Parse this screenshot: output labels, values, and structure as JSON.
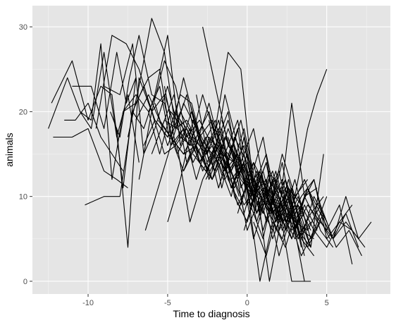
{
  "chart_data": {
    "type": "line",
    "title": "",
    "xlabel": "Time to diagnosis",
    "ylabel": "animals",
    "xlim": [
      -13.5,
      9
    ],
    "ylim": [
      -1.5,
      32.5
    ],
    "x_ticks": [
      -10,
      -5,
      0,
      5
    ],
    "y_ticks": [
      0,
      10,
      20,
      30
    ],
    "x_tick_labels": [
      "-10",
      "-5",
      "0",
      "5"
    ],
    "y_tick_labels": [
      "0",
      "10",
      "20",
      "30"
    ],
    "grid": true,
    "legend": "none",
    "colors": {
      "panel": "#e5e5e5",
      "grid_major": "#ffffff",
      "line": "#000000",
      "tick_label": "#4d4d4d"
    },
    "series": [
      {
        "x": [
          -12.5,
          -11.3,
          -10.5,
          -9.8,
          -9,
          -8.2,
          -7.5,
          -6.8
        ],
        "y": [
          18,
          24,
          20,
          18,
          27,
          17,
          22,
          14
        ]
      },
      {
        "x": [
          -12.3,
          -11,
          -10,
          -9.2,
          -8.5,
          -7.8,
          -7
        ],
        "y": [
          21,
          26,
          19,
          23,
          22,
          11,
          24
        ]
      },
      {
        "x": [
          -12.2,
          -11,
          -10,
          -9,
          -8.2,
          -7.5
        ],
        "y": [
          17,
          17,
          18,
          13,
          12,
          11
        ]
      },
      {
        "x": [
          -11.5,
          -10.8,
          -10,
          -9.2,
          -8.5,
          -7.8
        ],
        "y": [
          19,
          19,
          21,
          17,
          15,
          13
        ]
      },
      {
        "x": [
          -11,
          -10.5,
          -9.8,
          -9,
          -8.2,
          -7.6,
          -7
        ],
        "y": [
          23,
          23,
          23,
          18,
          27,
          21,
          24
        ]
      },
      {
        "x": [
          -10.5,
          -9.8,
          -9.2,
          -8.5,
          -7.8,
          -7,
          -6.2,
          -5.5,
          -4.8,
          -4,
          -3.2
        ],
        "y": [
          20,
          19,
          28,
          12,
          20,
          22,
          20,
          15,
          20,
          18,
          15
        ]
      },
      {
        "x": [
          -10.2,
          -9,
          -8,
          -7.2,
          -6.5,
          -5.8,
          -5
        ],
        "y": [
          9,
          10,
          10,
          20,
          23,
          19,
          17
        ]
      },
      {
        "x": [
          -9.5,
          -8.5,
          -7.6,
          -6.8,
          -6,
          -5.2,
          -4.5,
          -3.8,
          -3
        ],
        "y": [
          18,
          29,
          28,
          25,
          20,
          22,
          18,
          19,
          16
        ]
      },
      {
        "x": [
          -9,
          -8,
          -7.2,
          -6.5,
          -5.8,
          -5,
          -4.2,
          -3.5
        ],
        "y": [
          23,
          22,
          28,
          15,
          18,
          23,
          17,
          16
        ]
      },
      {
        "x": [
          -8.6,
          -8,
          -7.4,
          -6.8,
          -6,
          -5.2,
          -4.6,
          -4
        ],
        "y": [
          20,
          17,
          24,
          29,
          22,
          21,
          16,
          18
        ]
      },
      {
        "x": [
          -8.2,
          -7.5,
          -6.8,
          -6,
          -5.2,
          -4.5,
          -3.8,
          -3,
          -2.2
        ],
        "y": [
          18,
          4,
          24,
          20,
          15,
          16,
          18,
          14,
          12
        ]
      },
      {
        "x": [
          -7.8,
          -7,
          -6.2,
          -5.5,
          -4.8,
          -4,
          -3.2,
          -2.4
        ],
        "y": [
          20,
          21,
          24,
          25,
          17,
          15,
          16,
          13
        ]
      },
      {
        "x": [
          -7.5,
          -6.8,
          -6,
          -5.2,
          -4.5,
          -3.8,
          -3,
          -2.2,
          -1.5
        ],
        "y": [
          17,
          23,
          31,
          27,
          18,
          22,
          14,
          16,
          12
        ]
      },
      {
        "x": [
          -7.2,
          -6.5,
          -5.8,
          -5,
          -4.2,
          -3.5,
          -2.8,
          -2,
          -1.2,
          -0.5
        ],
        "y": [
          20,
          18,
          22,
          29,
          16,
          20,
          15,
          18,
          14,
          10
        ]
      },
      {
        "x": [
          -7,
          -6.2,
          -5.5,
          -4.8,
          -4,
          -3.2,
          -2.5,
          -1.8,
          -1,
          -0.2,
          0.6
        ],
        "y": [
          19,
          22,
          19,
          17,
          24,
          18,
          15,
          19,
          12,
          14,
          9
        ]
      },
      {
        "x": [
          -6.8,
          -6,
          -5.2,
          -4.5,
          -3.8,
          -3,
          -2.2,
          -1.4,
          -0.6,
          0.2,
          1
        ],
        "y": [
          12,
          20,
          26,
          23,
          17,
          19,
          16,
          13,
          15,
          11,
          8
        ]
      },
      {
        "x": [
          -6.5,
          -5.8,
          -5,
          -4.2,
          -3.5,
          -2.8,
          -2,
          -1.2,
          -0.4,
          0.4,
          1.2,
          2
        ],
        "y": [
          16,
          19,
          17,
          22,
          21,
          16,
          13,
          18,
          14,
          10,
          12,
          7
        ]
      },
      {
        "x": [
          -6.4,
          -5.6,
          -4.8,
          -4,
          -3.2,
          -2.4,
          -1.6,
          -0.8,
          0,
          0.8,
          1.6,
          2.4
        ],
        "y": [
          6,
          11,
          16,
          18,
          12,
          17,
          15,
          14,
          9,
          12,
          8,
          10
        ]
      },
      {
        "x": [
          -6.2,
          -5.5,
          -4.8,
          -4,
          -3.2,
          -2.5,
          -1.8,
          -1,
          -0.2,
          0.6,
          1.4,
          2.2,
          3
        ],
        "y": [
          20,
          23,
          16,
          21,
          18,
          13,
          17,
          11,
          15,
          8,
          11,
          7,
          9
        ]
      },
      {
        "x": [
          -6,
          -5.2,
          -4.4,
          -3.6,
          -2.8,
          -2,
          -1.2,
          -0.4,
          0.4,
          1.2,
          2,
          2.8,
          3.6
        ],
        "y": [
          15,
          19,
          18,
          16,
          22,
          17,
          14,
          19,
          12,
          10,
          13,
          6,
          8
        ]
      },
      {
        "x": [
          -5.8,
          -5,
          -4.2,
          -3.4,
          -2.6,
          -1.8,
          -1,
          -0.2,
          0.6,
          1.4,
          2.2,
          3,
          3.8
        ],
        "y": [
          21,
          16,
          20,
          17,
          15,
          18,
          13,
          16,
          10,
          9,
          12,
          7,
          6
        ]
      },
      {
        "x": [
          -5.6,
          -4.8,
          -4,
          -3.2,
          -2.4,
          -1.6,
          -0.8,
          0,
          0.8,
          1.6,
          2.4,
          3.2,
          4
        ],
        "y": [
          19,
          17,
          15,
          18,
          12,
          16,
          14,
          11,
          13,
          8,
          10,
          5,
          7
        ]
      },
      {
        "x": [
          -5.4,
          -4.6,
          -3.8,
          -3,
          -2.2,
          -1.4,
          -0.6,
          0.2,
          1,
          1.8,
          2.6,
          3.4
        ],
        "y": [
          18,
          22,
          14,
          17,
          19,
          12,
          15,
          9,
          12,
          6,
          11,
          4
        ]
      },
      {
        "x": [
          -5.2,
          -4.4,
          -3.6,
          -2.8,
          -2,
          -1.2,
          -0.4,
          0.4,
          1.2,
          2,
          2.8,
          3.6,
          4.4
        ],
        "y": [
          23,
          15,
          18,
          13,
          16,
          20,
          11,
          14,
          7,
          10,
          5,
          9,
          6
        ]
      },
      {
        "x": [
          -5,
          -4.2,
          -3.4,
          -2.6,
          -1.8,
          -1,
          -0.2,
          0.6,
          1.4,
          2.2,
          3,
          3.8,
          4.6
        ],
        "y": [
          7,
          12,
          19,
          16,
          14,
          10,
          17,
          8,
          12,
          6,
          9,
          4,
          7
        ]
      },
      {
        "x": [
          -4.8,
          -4,
          -3.2,
          -2.4,
          -1.6,
          -0.8,
          0,
          0.8,
          1.6,
          2.4,
          3.2,
          4,
          4.8
        ],
        "y": [
          17,
          13,
          16,
          21,
          15,
          12,
          14,
          10,
          8,
          11,
          5,
          8,
          10
        ]
      },
      {
        "x": [
          -4.6,
          -3.8,
          -3,
          -2.2,
          -1.4,
          -0.6,
          0.2,
          1,
          1.8,
          2.6,
          3.4,
          4.2
        ],
        "y": [
          20,
          18,
          14,
          17,
          13,
          18,
          9,
          11,
          7,
          12,
          6,
          5
        ]
      },
      {
        "x": [
          -4.4,
          -3.6,
          -2.8,
          -2,
          -1.2,
          -0.4,
          0.4,
          1.2,
          2,
          2.8,
          3.6
        ],
        "y": [
          16,
          7,
          12,
          15,
          19,
          13,
          10,
          14,
          6,
          9,
          3
        ]
      },
      {
        "x": [
          -4.2,
          -3.4,
          -2.6,
          -1.8,
          -1,
          -0.2,
          0.6,
          1.4,
          2.2,
          3,
          3.8,
          4.6,
          5.4
        ],
        "y": [
          19,
          14,
          17,
          11,
          16,
          12,
          8,
          13,
          10,
          7,
          11,
          6,
          4
        ]
      },
      {
        "x": [
          -4,
          -3.2,
          -2.4,
          -1.6,
          -0.8,
          0,
          0.8,
          1.6,
          2.4,
          3.2,
          4
        ],
        "y": [
          13,
          17,
          20,
          14,
          11,
          15,
          9,
          6,
          12,
          8,
          4
        ]
      },
      {
        "x": [
          -3.8,
          -3,
          -2.2,
          -1.4,
          -0.6,
          0.2,
          1,
          1.8,
          2.6,
          3.4,
          4.2,
          5,
          5.8,
          6.6,
          7.4
        ],
        "y": [
          18,
          15,
          12,
          17,
          14,
          10,
          13,
          7,
          11,
          9,
          6,
          4,
          7,
          6,
          4
        ]
      },
      {
        "x": [
          -3.6,
          -2.8,
          -2,
          -1.2,
          -0.4,
          0.4,
          1.2,
          2,
          2.8,
          3.6,
          4.4
        ],
        "y": [
          21,
          16,
          19,
          12,
          9,
          14,
          11,
          8,
          5,
          10,
          7
        ]
      },
      {
        "x": [
          -3.4,
          -2.6,
          -1.8,
          -1,
          -0.2,
          0.6,
          1.4,
          2.2,
          3,
          3.8,
          4.6,
          5.4,
          6.2,
          7
        ],
        "y": [
          15,
          13,
          16,
          11,
          14,
          7,
          12,
          9,
          6,
          11,
          8,
          5,
          10,
          5
        ]
      },
      {
        "x": [
          -3.2,
          -2.4,
          -1.6,
          -0.8,
          0,
          0.8,
          1.6,
          2.4,
          3.2
        ],
        "y": [
          22,
          14,
          18,
          10,
          7,
          13,
          9,
          12,
          6
        ]
      },
      {
        "x": [
          -3,
          -2.2,
          -1.4,
          -0.6,
          0.2,
          1,
          1.8,
          2.6,
          3.4,
          4.2,
          5,
          5.8,
          6.6
        ],
        "y": [
          17,
          12,
          15,
          19,
          11,
          8,
          13,
          7,
          10,
          12,
          6,
          9,
          2
        ]
      },
      {
        "x": [
          -2.8,
          -2,
          -1.2,
          -0.4,
          0.4,
          1.2,
          2,
          2.8,
          3.6
        ],
        "y": [
          30,
          23,
          16,
          14,
          18,
          10,
          7,
          11,
          4
        ]
      },
      {
        "x": [
          -2.6,
          -1.8,
          -1,
          -0.2,
          0.6,
          1.4,
          2.2,
          3,
          3.8,
          4.6,
          5.4,
          6.2,
          7,
          7.8
        ],
        "y": [
          12,
          15,
          13,
          9,
          11,
          8,
          14,
          6,
          9,
          7,
          5,
          7,
          5,
          7
        ]
      },
      {
        "x": [
          -2.4,
          -1.6,
          -0.8,
          0,
          0.8,
          1.6,
          2.4,
          3.2,
          4,
          4.8,
          5.6,
          6.4,
          7.2
        ],
        "y": [
          19,
          11,
          17,
          14,
          8,
          12,
          6,
          10,
          5,
          8,
          4,
          6,
          3
        ]
      },
      {
        "x": [
          -2.2,
          -1.4,
          -0.6,
          0.2,
          1,
          1.8,
          2.6,
          3.4,
          4.2
        ],
        "y": [
          13,
          22,
          16,
          9,
          12,
          7,
          10,
          5,
          3
        ]
      },
      {
        "x": [
          -2,
          -1.2,
          -0.4,
          0.4,
          1.2,
          2,
          2.8,
          3.6,
          4.4
        ],
        "y": [
          18,
          27,
          25,
          11,
          15,
          8,
          21,
          10,
          11
        ]
      },
      {
        "x": [
          -1.8,
          -1,
          -0.2,
          0.6,
          1.4,
          2.2,
          3,
          3.8,
          4.6,
          5.4,
          6.2,
          7
        ],
        "y": [
          11,
          16,
          8,
          13,
          10,
          7,
          12,
          6,
          9,
          5,
          8,
          4
        ]
      },
      {
        "x": [
          -1.6,
          -0.8,
          0,
          0.8,
          1.6,
          2.4,
          3.2,
          4,
          4.8
        ],
        "y": [
          19,
          14,
          6,
          10,
          13,
          7,
          9,
          4,
          15
        ]
      },
      {
        "x": [
          -1.4,
          -0.6,
          0.2,
          1,
          1.8,
          2.6,
          3.4,
          4.2,
          5
        ],
        "y": [
          15,
          9,
          12,
          17,
          8,
          11,
          5,
          10,
          7
        ]
      },
      {
        "x": [
          -1.2,
          -0.4,
          0.4,
          1.2,
          2,
          2.8,
          3.6,
          4.4,
          5.2
        ],
        "y": [
          17,
          12,
          10,
          14,
          6,
          9,
          12,
          8,
          5
        ]
      },
      {
        "x": [
          -1,
          -0.2,
          0.6,
          1.4,
          2.2,
          3,
          3.8,
          4.4,
          5
        ],
        "y": [
          13,
          18,
          11,
          8,
          15,
          10,
          18,
          22,
          25
        ]
      },
      {
        "x": [
          -0.8,
          0,
          0.8,
          1.6,
          2.4,
          3.2,
          4
        ],
        "y": [
          10,
          7,
          12,
          5,
          9,
          6,
          4
        ]
      },
      {
        "x": [
          -0.6,
          0.2,
          1,
          1.8,
          2.6,
          3.4,
          4.2,
          5,
          5.8,
          6.6
        ],
        "y": [
          8,
          13,
          6,
          11,
          7,
          9,
          12,
          5,
          7,
          9
        ]
      },
      {
        "x": [
          -0.4,
          0.4,
          1.2,
          2,
          2.8,
          3.6
        ],
        "y": [
          14,
          5,
          10,
          3,
          8,
          0
        ]
      },
      {
        "x": [
          -0.2,
          0.6,
          1.4,
          2.2,
          3,
          3.8
        ],
        "y": [
          6,
          11,
          0,
          8,
          5,
          7
        ]
      },
      {
        "x": [
          0,
          0.8,
          1.6,
          2.4,
          3.2,
          4
        ],
        "y": [
          11,
          0,
          7,
          4,
          9,
          6
        ]
      },
      {
        "x": [
          0.2,
          1,
          1.8,
          2.6,
          3.4,
          4.2,
          5
        ],
        "y": [
          9,
          5,
          12,
          8,
          3,
          6,
          10
        ]
      },
      {
        "x": [
          0.4,
          1.2,
          2,
          2.8,
          3.4,
          4
        ],
        "y": [
          7,
          3,
          9,
          0,
          0,
          0
        ]
      },
      {
        "x": [
          0.6,
          1.4,
          2.2,
          3,
          3.8
        ],
        "y": [
          13,
          8,
          5,
          10,
          12
        ]
      }
    ]
  }
}
